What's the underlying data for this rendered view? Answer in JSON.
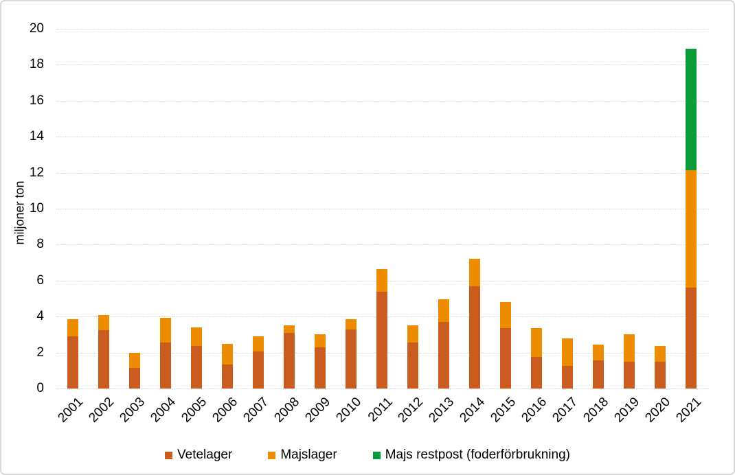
{
  "window": {
    "background": "#FFFFFF",
    "border_color": "#D9D9D9",
    "gridline_color": "#DADADA",
    "text_color": "#000000"
  },
  "chart_data": {
    "type": "bar",
    "stacked": true,
    "title": "",
    "xlabel": "",
    "ylabel": "miljoner ton",
    "ylim": [
      0,
      20
    ],
    "ytick_step": 2,
    "grid": true,
    "legend_position": "bottom",
    "categories": [
      "2001",
      "2002",
      "2003",
      "2004",
      "2005",
      "2006",
      "2007",
      "2008",
      "2009",
      "2010",
      "2011",
      "2012",
      "2013",
      "2014",
      "2015",
      "2016",
      "2017",
      "2018",
      "2019",
      "2020",
      "2021"
    ],
    "series": [
      {
        "name": "Vetelager",
        "color": "#CB5C20",
        "values": [
          2.9,
          3.25,
          1.15,
          2.55,
          2.35,
          1.35,
          2.05,
          3.1,
          2.3,
          3.3,
          5.4,
          2.55,
          3.7,
          5.7,
          3.35,
          1.75,
          1.25,
          1.55,
          1.5,
          1.5,
          5.6
        ]
      },
      {
        "name": "Majslager",
        "color": "#EE8C00",
        "values": [
          0.95,
          0.85,
          0.85,
          1.4,
          1.05,
          1.15,
          0.85,
          0.4,
          0.7,
          0.55,
          1.25,
          0.95,
          1.25,
          1.5,
          1.45,
          1.6,
          1.55,
          0.9,
          1.5,
          0.85,
          6.55
        ]
      },
      {
        "name": "Majs restpost (foderförbrukning)",
        "color": "#0A9C39",
        "values": [
          0,
          0,
          0,
          0,
          0,
          0,
          0,
          0,
          0,
          0,
          0,
          0,
          0,
          0,
          0,
          0,
          0,
          0,
          0,
          0,
          6.75
        ]
      }
    ]
  }
}
